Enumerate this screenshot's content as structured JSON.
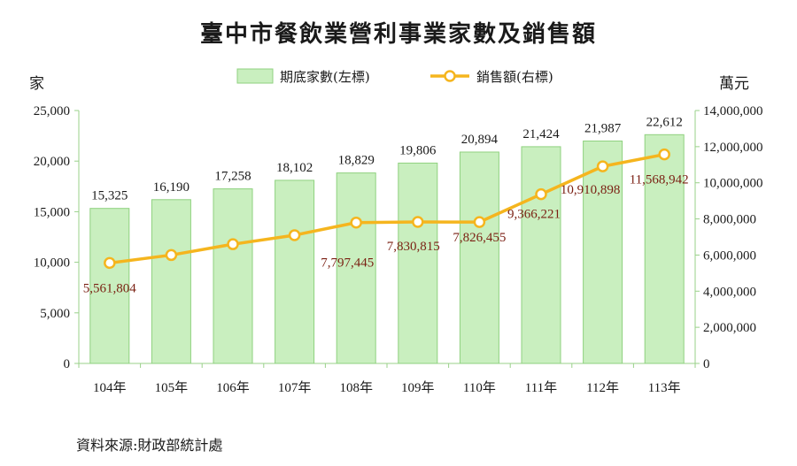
{
  "title": "臺中市餐飲業營利事業家數及銷售額",
  "source": "資料來源:財政部統計處",
  "colors": {
    "bar_fill": "#c9efbf",
    "bar_stroke": "#8fd17f",
    "line": "#f5b51e",
    "marker_fill": "#ffffff",
    "line_label": "#7a1f12",
    "axis": "#9ad18a"
  },
  "chart_data": {
    "type": "bar+line",
    "title": "臺中市餐飲業營利事業家數及銷售額",
    "categories": [
      "104年",
      "105年",
      "106年",
      "107年",
      "108年",
      "109年",
      "110年",
      "111年",
      "112年",
      "113年"
    ],
    "series": [
      {
        "name": "期底家數(左標)",
        "type": "bar",
        "axis": "left",
        "values": [
          15325,
          16190,
          17258,
          18102,
          18829,
          19806,
          20894,
          21424,
          21987,
          22612
        ],
        "labels": [
          "15,325",
          "16,190",
          "17,258",
          "18,102",
          "18,829",
          "19,806",
          "20,894",
          "21,424",
          "21,987",
          "22,612"
        ]
      },
      {
        "name": "銷售額(右標)",
        "type": "line",
        "axis": "right",
        "values": [
          5561804,
          6000000,
          6600000,
          7100000,
          7797445,
          7830815,
          7826455,
          9366221,
          10910898,
          11568942
        ],
        "labels": [
          "5,561,804",
          "",
          "",
          "",
          "7,797,445",
          "7,830,815",
          "7,826,455",
          "9,366,221",
          "10,910,898",
          "11,568,942"
        ]
      }
    ],
    "y_left": {
      "unit": "家",
      "range": [
        0,
        25000
      ],
      "ticks": [
        "0",
        "5,000",
        "10,000",
        "15,000",
        "20,000",
        "25,000"
      ]
    },
    "y_right": {
      "unit": "萬元",
      "range": [
        0,
        14000000
      ],
      "ticks": [
        "0",
        "2,000,000",
        "4,000,000",
        "6,000,000",
        "8,000,000",
        "10,000,000",
        "12,000,000",
        "14,000,000"
      ]
    },
    "legend_position": "top",
    "grid": false
  }
}
